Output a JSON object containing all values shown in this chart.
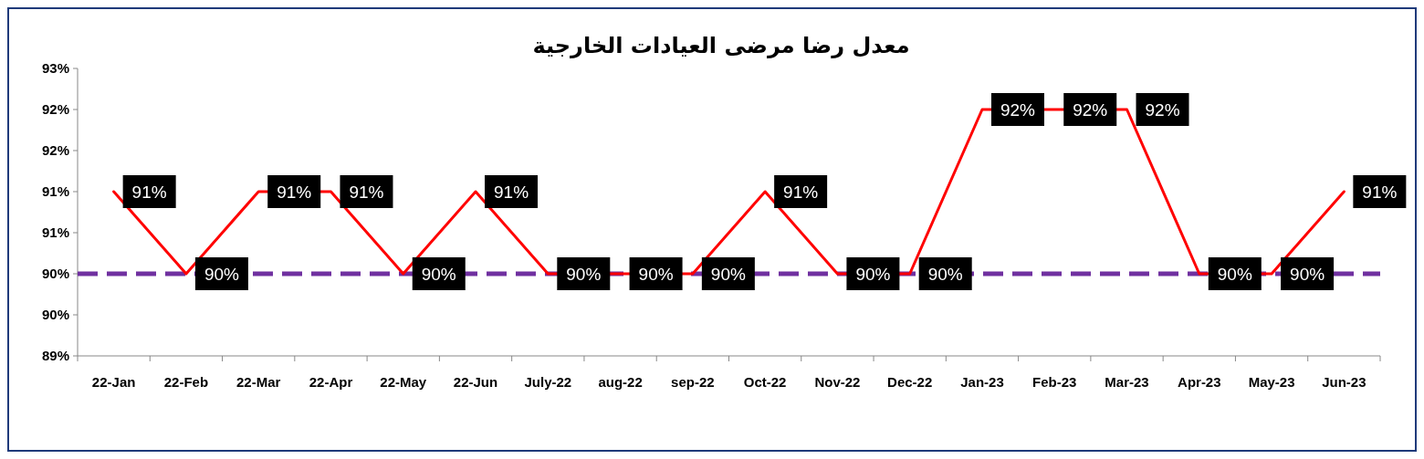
{
  "chart_data": {
    "type": "line",
    "title": "معدل رضا مرضى العيادات الخارجية",
    "categories": [
      "22-Jan",
      "22-Feb",
      "22-Mar",
      "22-Apr",
      "22-May",
      "22-Jun",
      "July-22",
      "aug-22",
      "sep-22",
      "Oct-22",
      "Nov-22",
      "Dec-22",
      "Jan-23",
      "Feb-23",
      "Mar-23",
      "Apr-23",
      "May-23",
      "Jun-23"
    ],
    "series": [
      {
        "color": "#ff0000",
        "values": [
          91,
          90,
          91,
          91,
          90,
          91,
          90,
          90,
          90,
          91,
          90,
          90,
          92,
          92,
          92,
          90,
          90,
          91
        ],
        "value_labels": [
          "91%",
          "90%",
          "91%",
          "91%",
          "90%",
          "91%",
          "90%",
          "90%",
          "90%",
          "91%",
          "90%",
          "90%",
          "92%",
          "92%",
          "92%",
          "90%",
          "90%",
          "91%"
        ]
      }
    ],
    "ylim": [
      89,
      92.5
    ],
    "yticks": [
      {
        "value": 89,
        "label": "89%"
      },
      {
        "value": 89.5,
        "label": "90%"
      },
      {
        "value": 90,
        "label": "90%"
      },
      {
        "value": 90.5,
        "label": "91%"
      },
      {
        "value": 91,
        "label": "91%"
      },
      {
        "value": 91.5,
        "label": "92%"
      },
      {
        "value": 92,
        "label": "92%"
      },
      {
        "value": 92.5,
        "label": "93%"
      }
    ],
    "ref_lines": [
      {
        "axis": "y",
        "value": 90,
        "color": "#7030a0",
        "line_style": "dashed"
      }
    ],
    "grid": false,
    "marker": "none",
    "line_style": "solid"
  }
}
